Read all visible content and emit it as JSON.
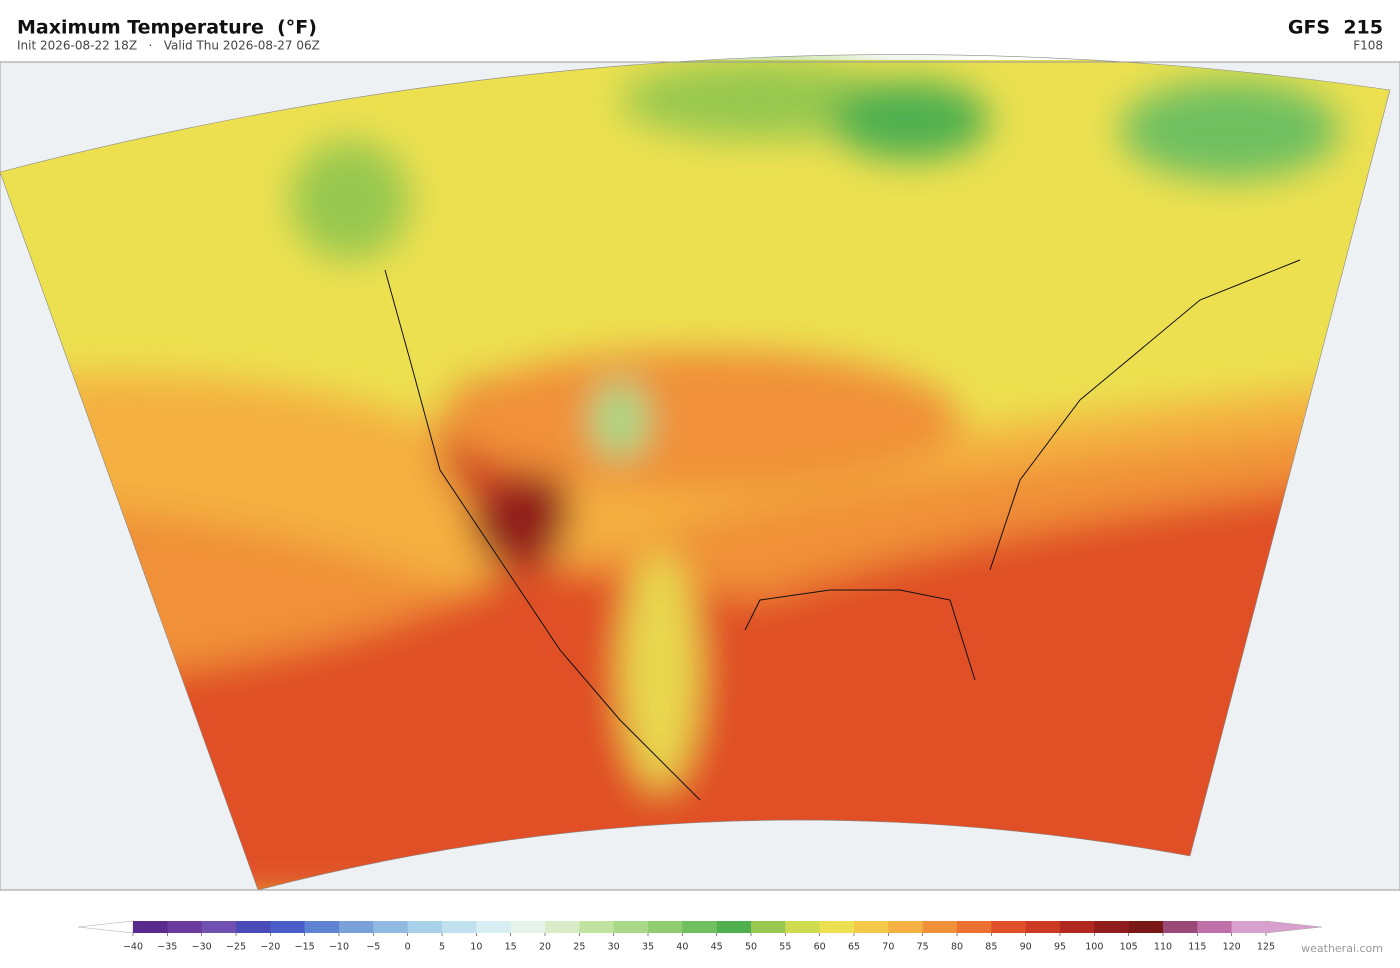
{
  "header": {
    "title": "Maximum Temperature  (°F)",
    "subtitle": "Init 2026-08-22 18Z   ·   Valid Thu 2026-08-27 06Z",
    "model": "GFS  215",
    "forecast_hour": "F108"
  },
  "colorbar": {
    "ticks": [
      {
        "value": -40,
        "label": "−40"
      },
      {
        "value": -35,
        "label": "−35"
      },
      {
        "value": -30,
        "label": "−30"
      },
      {
        "value": -25,
        "label": "−25"
      },
      {
        "value": -20,
        "label": "−20"
      },
      {
        "value": -15,
        "label": "−15"
      },
      {
        "value": -10,
        "label": "−10"
      },
      {
        "value": -5,
        "label": "−5"
      },
      0,
      5,
      10,
      15,
      20,
      25,
      30,
      35,
      40,
      45,
      50,
      55,
      60,
      65,
      70,
      75,
      80,
      85,
      90,
      95,
      100,
      105,
      110,
      115,
      120,
      125
    ],
    "colors": [
      "#5b2a8e",
      "#6a3a9e",
      "#7050b0",
      "#4a4ab8",
      "#4a5cc8",
      "#6082d2",
      "#7aa0d8",
      "#90bae2",
      "#a8d0e8",
      "#c0e0ee",
      "#d6eef2",
      "#e6f4ec",
      "#d8ecc8",
      "#c0e4a0",
      "#a8d888",
      "#90cc70",
      "#70c060",
      "#50b050",
      "#98c850",
      "#d0dc50",
      "#ece050",
      "#f4c848",
      "#f4b040",
      "#f09038",
      "#ec7030",
      "#e05028",
      "#cc3a24",
      "#b02820",
      "#901c1c",
      "#7a1818",
      "#9a4878",
      "#c070a8",
      "#d8a0cc"
    ],
    "under_color": "#ffffff",
    "over_color": "#d8a0cc"
  },
  "watermark": "weatherai.com"
}
